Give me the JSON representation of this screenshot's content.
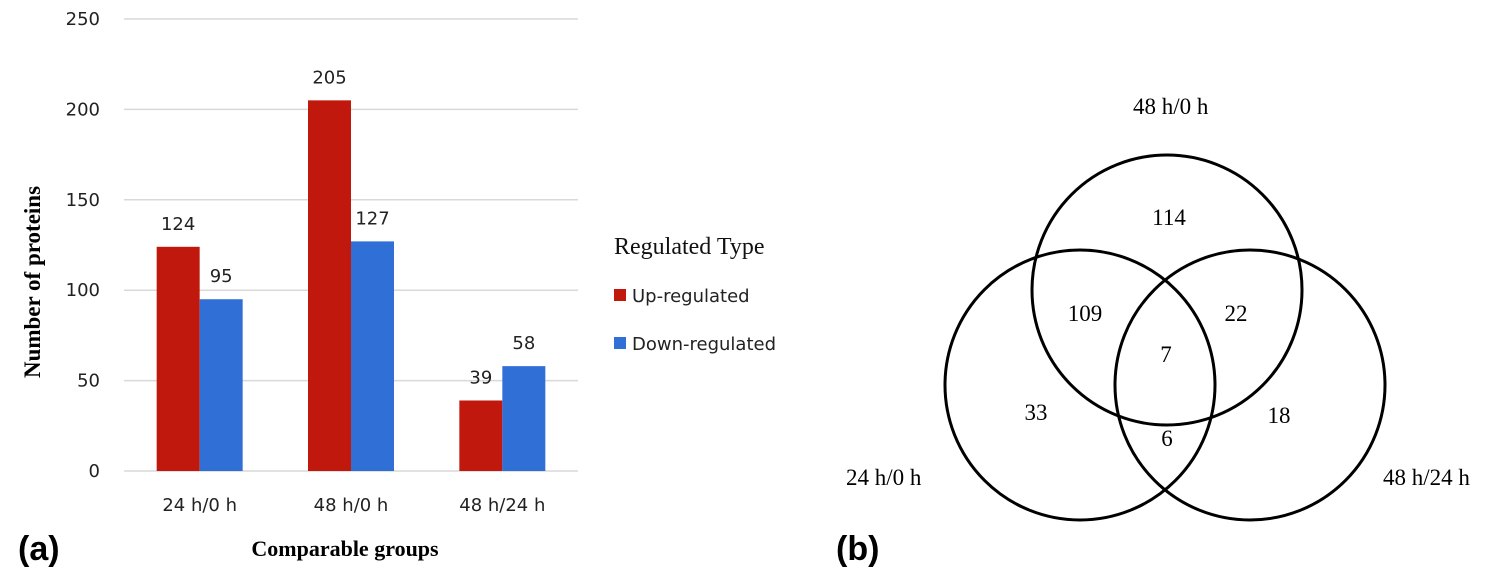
{
  "chart_data": [
    {
      "type": "bar",
      "panel_label": "(a)",
      "categories": [
        "24 h/0 h",
        "48 h/0 h",
        "48 h/24 h"
      ],
      "series": [
        {
          "name": "Up-regulated",
          "color": "#c0180c",
          "values": [
            124,
            205,
            39
          ]
        },
        {
          "name": "Down-regulated",
          "color": "#2f6fd6",
          "values": [
            95,
            127,
            58
          ]
        }
      ],
      "xlabel": "Comparable groups",
      "ylabel": "Number of proteins",
      "ylim": [
        0,
        250
      ],
      "yticks": [
        "0",
        "50",
        "100",
        "150",
        "200",
        "250"
      ],
      "grid": true,
      "legend": {
        "title": "Regulated Type",
        "placement": "right"
      }
    },
    {
      "type": "venn",
      "panel_label": "(b)",
      "sets": [
        "48 h/0 h",
        "24 h/0 h",
        "48 h/24 h"
      ],
      "regions": {
        "only_48h_0h": "114",
        "only_24h_0h": "33",
        "only_48h_24h": "18",
        "48h_0h_and_24h_0h": "109",
        "48h_0h_and_48h_24h": "22",
        "24h_0h_and_48h_24h": "6",
        "all_three": "7"
      }
    }
  ]
}
